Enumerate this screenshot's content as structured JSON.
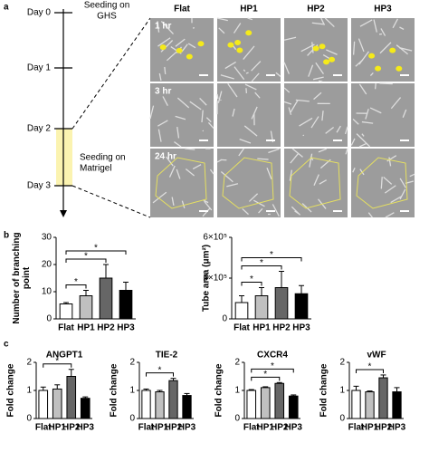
{
  "panel_a": {
    "label": "a",
    "timeline": [
      "Day 0",
      "Day 1",
      "Day 2",
      "Day 3"
    ],
    "event_1": [
      "Seeding on",
      "GHS"
    ],
    "event_2": [
      "Seeding on",
      "Matrigel"
    ],
    "columns": [
      "Flat",
      "HP1",
      "HP2",
      "HP3"
    ],
    "rows": [
      "1 hr",
      "3 hr",
      "24 hr"
    ]
  },
  "panel_b_label": "b",
  "panel_c_label": "c",
  "chart_data": [
    {
      "type": "bar",
      "y_label": [
        "Number of branching",
        "point"
      ],
      "categories": [
        "Flat",
        "HP1",
        "HP2",
        "HP3"
      ],
      "values": [
        5.5,
        8.5,
        15,
        10.5
      ],
      "errors": [
        0.5,
        2,
        5,
        3
      ],
      "colors": [
        "#ffffff",
        "#c0c0c0",
        "#666666",
        "#000000"
      ],
      "ylim": [
        0,
        30
      ],
      "yticks": [
        0,
        10,
        20,
        30
      ],
      "significance": [
        {
          "pair": [
            0,
            1
          ],
          "label": "*"
        },
        {
          "pair": [
            0,
            2
          ],
          "label": "*"
        },
        {
          "pair": [
            0,
            3
          ],
          "label": "*"
        }
      ]
    },
    {
      "type": "bar",
      "y_label": [
        "Tube area (μm²)"
      ],
      "categories": [
        "Flat",
        "HP1",
        "HP2",
        "HP3"
      ],
      "values": [
        120000,
        170000,
        230000,
        185000
      ],
      "errors": [
        50000,
        60000,
        120000,
        60000
      ],
      "colors": [
        "#ffffff",
        "#c0c0c0",
        "#666666",
        "#000000"
      ],
      "ylim": [
        0,
        600000
      ],
      "yticks": [
        {
          "value": 0,
          "label": "0"
        },
        {
          "value": 300000,
          "label": "3×10⁵"
        },
        {
          "value": 600000,
          "label": "6×10⁵"
        }
      ],
      "significance": [
        {
          "pair": [
            0,
            1
          ],
          "label": "*"
        },
        {
          "pair": [
            0,
            2
          ],
          "label": "*"
        },
        {
          "pair": [
            0,
            3
          ],
          "label": "*"
        }
      ]
    },
    {
      "type": "bar",
      "title": "ANGPT1",
      "y_label": [
        "Fold change"
      ],
      "categories": [
        "Flat",
        "HP1",
        "HP2",
        "HP3"
      ],
      "values": [
        1.0,
        1.05,
        1.5,
        0.72
      ],
      "errors": [
        0.12,
        0.15,
        0.25,
        0.05
      ],
      "colors": [
        "#ffffff",
        "#c0c0c0",
        "#666666",
        "#000000"
      ],
      "ylim": [
        0,
        2
      ],
      "yticks": [
        0,
        1,
        2
      ],
      "significance": [
        {
          "pair": [
            0,
            2
          ],
          "label": "*"
        }
      ]
    },
    {
      "type": "bar",
      "title": "TIE-2",
      "y_label": [
        "Fold change"
      ],
      "categories": [
        "Flat",
        "HP1",
        "HP2",
        "HP3"
      ],
      "values": [
        1.0,
        0.95,
        1.35,
        0.82
      ],
      "errors": [
        0.05,
        0.05,
        0.08,
        0.07
      ],
      "colors": [
        "#ffffff",
        "#c0c0c0",
        "#666666",
        "#000000"
      ],
      "ylim": [
        0,
        2
      ],
      "yticks": [
        0,
        1,
        2
      ],
      "significance": [
        {
          "pair": [
            0,
            2
          ],
          "label": "*"
        }
      ]
    },
    {
      "type": "bar",
      "title": "CXCR4",
      "y_label": [
        "Fold change"
      ],
      "categories": [
        "Flat",
        "HP1",
        "HP2",
        "HP3"
      ],
      "values": [
        1.0,
        1.1,
        1.25,
        0.8
      ],
      "errors": [
        0.03,
        0.03,
        0.03,
        0.04
      ],
      "colors": [
        "#ffffff",
        "#c0c0c0",
        "#666666",
        "#000000"
      ],
      "ylim": [
        0,
        2
      ],
      "yticks": [
        0,
        1,
        2
      ],
      "significance": [
        {
          "pair": [
            0,
            2
          ],
          "label": "*"
        },
        {
          "pair": [
            0,
            3
          ],
          "label": "*"
        }
      ]
    },
    {
      "type": "bar",
      "title": "vWF",
      "y_label": [
        "Fold change"
      ],
      "categories": [
        "Flat",
        "HP1",
        "HP2",
        "HP3"
      ],
      "values": [
        1.0,
        0.95,
        1.45,
        0.95
      ],
      "errors": [
        0.15,
        0.03,
        0.1,
        0.15
      ],
      "colors": [
        "#ffffff",
        "#c0c0c0",
        "#666666",
        "#000000"
      ],
      "ylim": [
        0,
        2
      ],
      "yticks": [
        0,
        1,
        2
      ],
      "significance": [
        {
          "pair": [
            0,
            2
          ],
          "label": "*"
        }
      ]
    }
  ]
}
